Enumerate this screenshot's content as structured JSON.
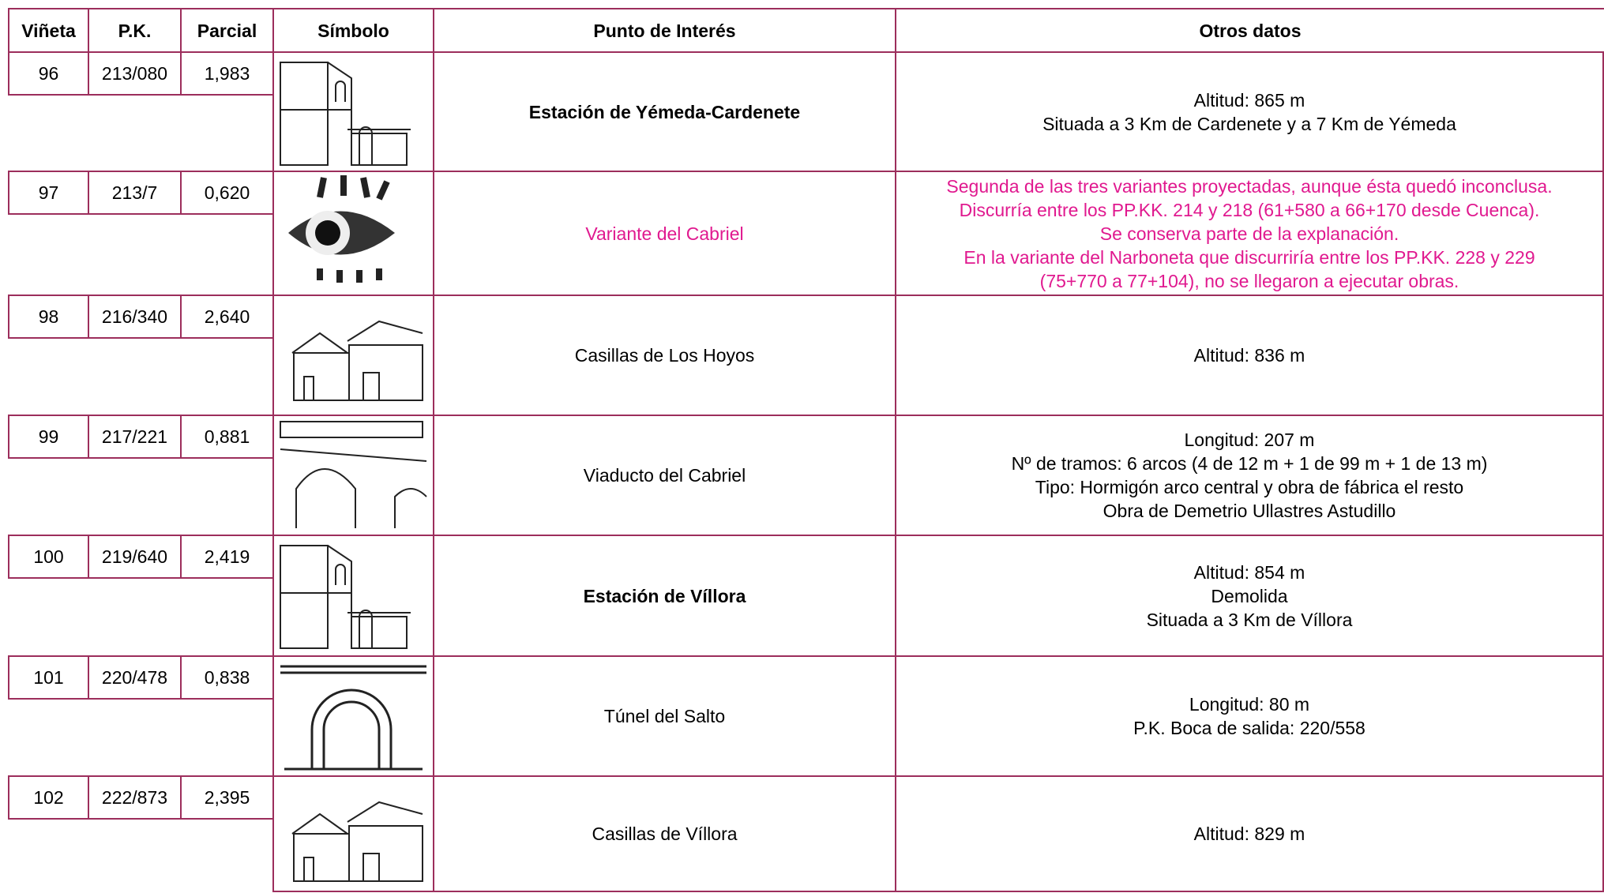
{
  "header": {
    "vineta": "Viñeta",
    "pk": "P.K.",
    "parcial": "Parcial",
    "simbolo": "Símbolo",
    "punto": "Punto de Interés",
    "otros": "Otros datos"
  },
  "rows": [
    {
      "vineta": "96",
      "pk": "213/080",
      "parcial": "1,983",
      "punto": "Estación de Yémeda-Cardenete",
      "otros": [
        "Altitud: 865 m",
        "Situada a 3 Km de Cardenete y a 7 Km de Yémeda"
      ]
    },
    {
      "vineta": "97",
      "pk": "213/7",
      "parcial": "0,620",
      "punto": "Variante del Cabriel",
      "otros": [
        "Segunda de las tres variantes proyectadas, aunque ésta quedó inconclusa.",
        "Discurría entre los PP.KK. 214 y 218 (61+580 a 66+170 desde Cuenca).",
        "Se conserva parte de la explanación.",
        "En la variante del Narboneta que discurriría entre los PP.KK. 228 y 229",
        "(75+770 a 77+104), no se llegaron a ejecutar obras."
      ]
    },
    {
      "vineta": "98",
      "pk": "216/340",
      "parcial": "2,640",
      "punto": "Casillas de Los Hoyos",
      "otros": [
        "Altitud: 836 m"
      ]
    },
    {
      "vineta": "99",
      "pk": "217/221",
      "parcial": "0,881",
      "punto": "Viaducto del Cabriel",
      "otros": [
        "Longitud: 207 m",
        "Nº de tramos: 6 arcos (4 de 12 m + 1 de 99 m + 1 de 13 m)",
        "Tipo: Hormigón arco central y obra de fábrica el resto",
        "Obra de Demetrio Ullastres Astudillo"
      ]
    },
    {
      "vineta": "100",
      "pk": "219/640",
      "parcial": "2,419",
      "punto": "Estación de Víllora",
      "otros": [
        "Altitud: 854 m",
        "Demolida",
        "Situada a 3 Km de Víllora"
      ]
    },
    {
      "vineta": "101",
      "pk": "220/478",
      "parcial": "0,838",
      "punto": "Túnel del Salto",
      "otros": [
        "Longitud: 80 m",
        "P.K. Boca de salida: 220/558"
      ]
    },
    {
      "vineta": "102",
      "pk": "222/873",
      "parcial": "2,395",
      "punto": "Casillas de Víllora",
      "otros": [
        "Altitud: 829 m"
      ]
    }
  ]
}
